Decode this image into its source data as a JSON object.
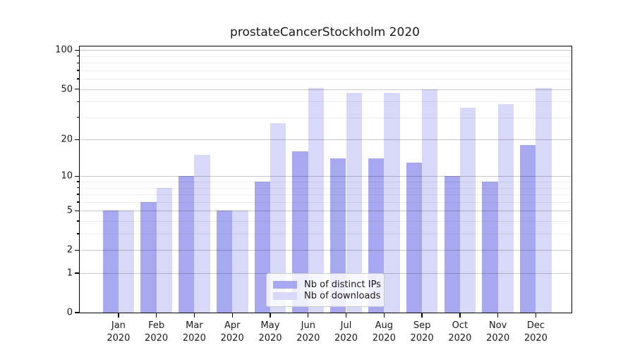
{
  "title": "prostateCancerStockholm 2020",
  "chart_data": {
    "type": "bar",
    "categories": [
      "Jan",
      "Feb",
      "Mar",
      "Apr",
      "May",
      "Jun",
      "Jul",
      "Aug",
      "Sep",
      "Oct",
      "Nov",
      "Dec"
    ],
    "year": "2020",
    "series": [
      {
        "name": "Nb of distinct IPs",
        "color": "#a8a8f0",
        "values": [
          5,
          6,
          10,
          5,
          9,
          16,
          14,
          14,
          13,
          10,
          9,
          18
        ]
      },
      {
        "name": "Nb of downloads",
        "color": "#d8d8f8",
        "values": [
          5,
          8,
          15,
          5,
          27,
          51,
          47,
          47,
          50,
          36,
          38,
          51
        ]
      }
    ],
    "xlabel": "",
    "ylabel": "",
    "yscale": "log1p",
    "ylim": [
      0,
      107
    ],
    "y_major_ticks": [
      0,
      1,
      2,
      5,
      10,
      20,
      50,
      100
    ],
    "y_minor_ticks": [
      3,
      4,
      6,
      7,
      8,
      9,
      30,
      40,
      60,
      70,
      80,
      90
    ],
    "grid": "both",
    "legend_position": "lower center"
  },
  "colors": {
    "distinct_ips": "#a8a8f0",
    "downloads": "#d8d8f8",
    "grid_major": "#c9c9c9",
    "grid_minor": "#ededed",
    "axis": "#000000"
  }
}
